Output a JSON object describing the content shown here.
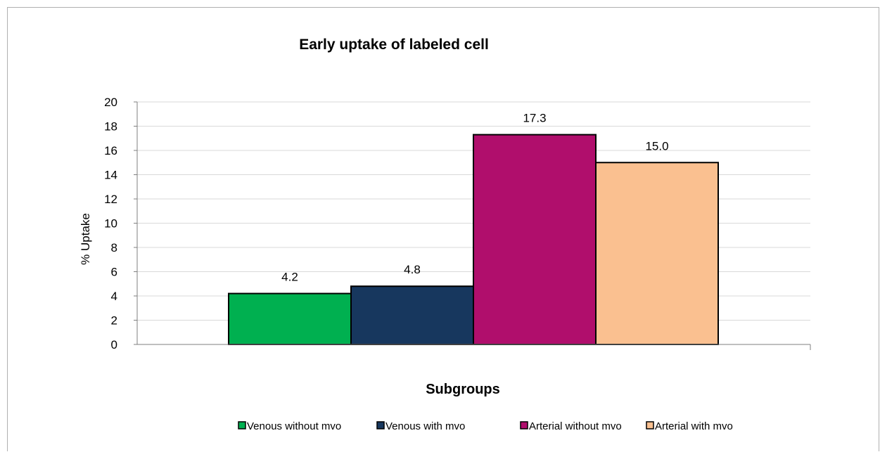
{
  "chart_data": {
    "type": "bar",
    "title": "Early uptake of labeled cell",
    "xlabel": "Subgroups",
    "ylabel": "% Uptake",
    "ylim": [
      0,
      20
    ],
    "yticks": [
      0,
      2,
      4,
      6,
      8,
      10,
      12,
      14,
      16,
      18,
      20
    ],
    "grid": true,
    "legend_position": "bottom",
    "series": [
      {
        "name": "Venous without mvo",
        "values": [
          4.2
        ],
        "label": "4.2",
        "color": "#00b050"
      },
      {
        "name": "Venous with mvo",
        "values": [
          4.8
        ],
        "label": "4.8",
        "color": "#17375e"
      },
      {
        "name": "Arterial without mvo",
        "values": [
          17.3
        ],
        "label": "17.3",
        "color": "#b00e6c"
      },
      {
        "name": "Arterial with mvo",
        "values": [
          15.0
        ],
        "label": "15.0",
        "color": "#fac090"
      }
    ]
  }
}
